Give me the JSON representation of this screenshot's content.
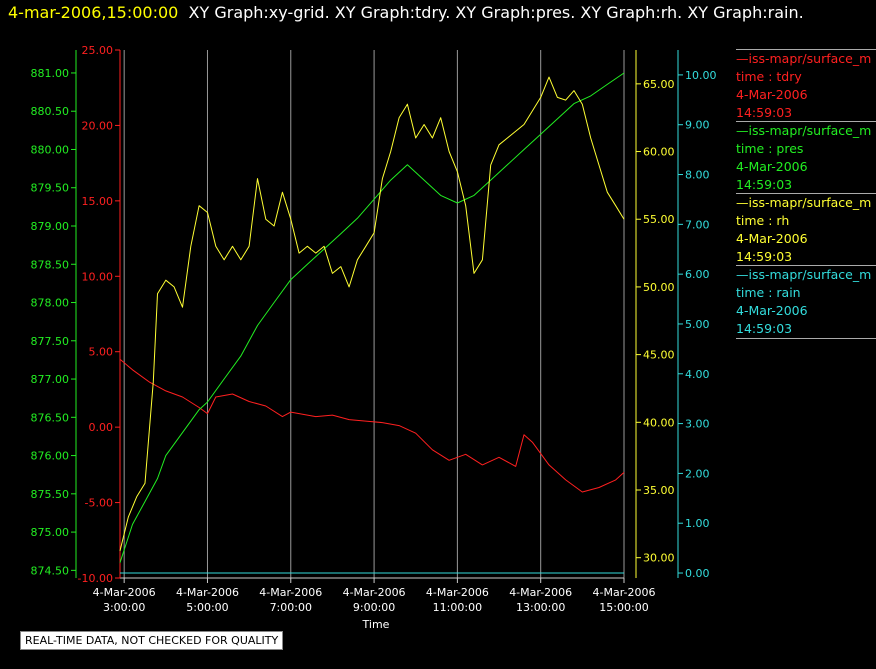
{
  "header": {
    "timestamp": "4-mar-2006,15:00:00",
    "titles": "XY Graph:xy-grid.  XY Graph:tdry.  XY Graph:pres.  XY Graph:rh.  XY Graph:rain."
  },
  "legend": [
    {
      "source": "—iss-mapr/surface_m",
      "label": "time : tdry",
      "date": "4-Mar-2006",
      "time": "14:59:03",
      "color": "#ff2020"
    },
    {
      "source": "—iss-mapr/surface_m",
      "label": "time : pres",
      "date": "4-Mar-2006",
      "time": "14:59:03",
      "color": "#22ee22"
    },
    {
      "source": "—iss-mapr/surface_m",
      "label": "time : rh",
      "date": "4-Mar-2006",
      "time": "14:59:03",
      "color": "#ffff33"
    },
    {
      "source": "—iss-mapr/surface_m",
      "label": "time : rain",
      "date": "4-Mar-2006",
      "time": "14:59:03",
      "color": "#33dddd"
    }
  ],
  "note": "REAL-TIME DATA, NOT CHECKED FOR QUALITY",
  "chart_data": {
    "type": "line",
    "xlabel": "Time",
    "x_ticks": [
      {
        "hours": 3,
        "date": "4-Mar-2006",
        "time": "3:00:00"
      },
      {
        "hours": 5,
        "date": "4-Mar-2006",
        "time": "5:00:00"
      },
      {
        "hours": 7,
        "date": "4-Mar-2006",
        "time": "7:00:00"
      },
      {
        "hours": 9,
        "date": "4-Mar-2006",
        "time": "9:00:00"
      },
      {
        "hours": 11,
        "date": "4-Mar-2006",
        "time": "11:00:00"
      },
      {
        "hours": 13,
        "date": "4-Mar-2006",
        "time": "13:00:00"
      },
      {
        "hours": 15,
        "date": "4-Mar-2006",
        "time": "15:00:00"
      }
    ],
    "xlim": [
      2.9,
      15.0
    ],
    "grid": "vertical",
    "axes": {
      "pres": {
        "ticks": [
          "874.50",
          "875.00",
          "875.50",
          "876.00",
          "876.50",
          "877.00",
          "877.50",
          "878.00",
          "878.50",
          "879.00",
          "879.50",
          "880.00",
          "880.50",
          "881.00"
        ],
        "ylim": [
          874.4,
          881.3
        ],
        "side": "left",
        "color": "#22ee22"
      },
      "tdry": {
        "ticks": [
          "-10.00",
          "-5.00",
          "0.00",
          "5.00",
          "10.00",
          "15.00",
          "20.00",
          "25.00"
        ],
        "ylim": [
          -10,
          25
        ],
        "side": "left",
        "color": "#ff2020"
      },
      "rh": {
        "ticks": [
          "30.00",
          "35.00",
          "40.00",
          "45.00",
          "50.00",
          "55.00",
          "60.00",
          "65.00"
        ],
        "ylim": [
          28.5,
          67.5
        ],
        "side": "right",
        "color": "#ffff33"
      },
      "rain": {
        "ticks": [
          "0.00",
          "1.00",
          "2.00",
          "3.00",
          "4.00",
          "5.00",
          "6.00",
          "7.00",
          "8.00",
          "9.00",
          "10.00"
        ],
        "ylim": [
          -0.1,
          10.5
        ],
        "side": "right",
        "color": "#33dddd"
      }
    },
    "series": [
      {
        "name": "tdry",
        "axis": "tdry",
        "color": "#ff2020",
        "x": [
          2.9,
          3.2,
          3.6,
          4.0,
          4.4,
          4.8,
          5.0,
          5.2,
          5.6,
          6.0,
          6.4,
          6.8,
          7.0,
          7.2,
          7.6,
          8.0,
          8.4,
          8.8,
          9.2,
          9.6,
          10.0,
          10.4,
          10.8,
          11.2,
          11.6,
          12.0,
          12.4,
          12.6,
          12.8,
          13.2,
          13.6,
          14.0,
          14.4,
          14.8,
          15.0
        ],
        "y": [
          4.5,
          3.8,
          3.0,
          2.4,
          2.0,
          1.3,
          0.9,
          2.0,
          2.2,
          1.7,
          1.4,
          0.7,
          1.0,
          0.9,
          0.7,
          0.8,
          0.5,
          0.4,
          0.3,
          0.1,
          -0.4,
          -1.5,
          -2.2,
          -1.8,
          -2.5,
          -2.0,
          -2.6,
          -0.5,
          -1.0,
          -2.5,
          -3.5,
          -4.3,
          -4.0,
          -3.5,
          -3.0
        ]
      },
      {
        "name": "pres",
        "axis": "pres",
        "color": "#22ee22",
        "x": [
          2.9,
          3.2,
          3.5,
          3.8,
          4.0,
          4.4,
          4.8,
          5.0,
          5.4,
          5.8,
          6.2,
          6.6,
          7.0,
          7.4,
          7.8,
          8.2,
          8.6,
          9.0,
          9.4,
          9.8,
          10.2,
          10.6,
          11.0,
          11.4,
          11.8,
          12.2,
          12.6,
          13.0,
          13.4,
          13.8,
          14.2,
          14.6,
          15.0
        ],
        "y": [
          874.6,
          875.1,
          875.4,
          875.7,
          876.0,
          876.3,
          876.6,
          876.7,
          877.0,
          877.3,
          877.7,
          878.0,
          878.3,
          878.5,
          878.7,
          878.9,
          879.1,
          879.35,
          879.6,
          879.8,
          879.6,
          879.4,
          879.3,
          879.4,
          879.6,
          879.8,
          880.0,
          880.2,
          880.4,
          880.6,
          880.7,
          880.85,
          881.0
        ]
      },
      {
        "name": "rh",
        "axis": "rh",
        "color": "#ffff33",
        "x": [
          2.9,
          3.1,
          3.3,
          3.5,
          3.7,
          3.8,
          4.0,
          4.2,
          4.4,
          4.6,
          4.8,
          5.0,
          5.2,
          5.4,
          5.6,
          5.8,
          6.0,
          6.2,
          6.4,
          6.6,
          6.8,
          7.0,
          7.2,
          7.4,
          7.6,
          7.8,
          8.0,
          8.2,
          8.4,
          8.6,
          8.8,
          9.0,
          9.2,
          9.4,
          9.6,
          9.8,
          10.0,
          10.2,
          10.4,
          10.6,
          10.8,
          11.0,
          11.2,
          11.4,
          11.6,
          11.8,
          12.0,
          12.2,
          12.4,
          12.6,
          12.8,
          13.0,
          13.2,
          13.4,
          13.6,
          13.8,
          14.0,
          14.2,
          14.4,
          14.6,
          14.8,
          15.0
        ],
        "y": [
          30.5,
          33,
          34.5,
          35.5,
          43,
          49.5,
          50.5,
          50,
          48.5,
          53,
          56,
          55.5,
          53,
          52,
          53,
          52,
          53,
          58,
          55,
          54.5,
          57,
          55,
          52.5,
          53,
          52.5,
          53,
          51,
          51.5,
          50,
          52,
          53,
          54,
          58,
          60,
          62.5,
          63.5,
          61,
          62,
          61,
          62.5,
          60,
          58.5,
          56,
          51,
          52,
          59,
          60.5,
          61,
          61.5,
          62,
          63,
          64,
          65.5,
          64,
          63.8,
          64.5,
          63.5,
          61,
          59,
          57,
          56,
          55
        ]
      },
      {
        "name": "rain",
        "axis": "rain",
        "color": "#33dddd",
        "x": [
          2.9,
          15.0
        ],
        "y": [
          0.0,
          0.0
        ]
      }
    ]
  }
}
